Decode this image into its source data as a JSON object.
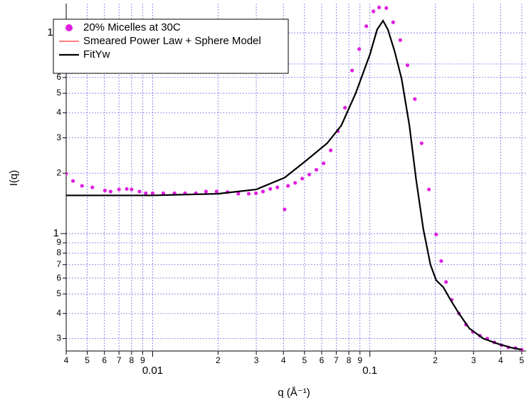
{
  "chart_data": {
    "type": "line",
    "xlabel": "q (Å⁻¹)",
    "ylabel": "I(q)",
    "xscale": "log",
    "yscale": "log",
    "grid": true,
    "legend": "upper left",
    "xlim": [
      0.004,
      0.5
    ],
    "ylim": [
      0.26,
      14
    ],
    "xticks": [
      {
        "value": 0.004,
        "label": "4"
      },
      {
        "value": 0.005,
        "label": "5"
      },
      {
        "value": 0.006,
        "label": "6"
      },
      {
        "value": 0.007,
        "label": "7"
      },
      {
        "value": 0.008,
        "label": "8"
      },
      {
        "value": 0.009,
        "label": "9"
      },
      0.01,
      {
        "value": 0.02,
        "label": "2"
      },
      {
        "value": 0.03,
        "label": "3"
      },
      {
        "value": 0.04,
        "label": "4"
      },
      {
        "value": 0.05,
        "label": "5"
      },
      {
        "value": 0.06,
        "label": "6"
      },
      {
        "value": 0.07,
        "label": "7"
      },
      {
        "value": 0.08,
        "label": "8"
      },
      {
        "value": 0.09,
        "label": "9"
      },
      0.1,
      {
        "value": 0.2,
        "label": "2"
      },
      {
        "value": 0.3,
        "label": "3"
      },
      {
        "value": 0.4,
        "label": "4"
      },
      {
        "value": 0.5,
        "label": "5"
      }
    ],
    "yticks": [
      {
        "value": 0.3,
        "label": "3"
      },
      {
        "value": 0.4,
        "label": "4"
      },
      {
        "value": 0.5,
        "label": "5"
      },
      {
        "value": 0.6,
        "label": "6"
      },
      {
        "value": 0.7,
        "label": "7"
      },
      {
        "value": 0.8,
        "label": "8"
      },
      {
        "value": 0.9,
        "label": "9"
      },
      1,
      {
        "value": 2,
        "label": "2"
      },
      {
        "value": 3,
        "label": "3"
      },
      {
        "value": 4,
        "label": "4"
      },
      {
        "value": 5,
        "label": "5"
      },
      {
        "value": 6,
        "label": "6"
      },
      {
        "value": 7,
        "label": "7"
      },
      10
    ],
    "series": [
      {
        "name": "20% Micelles at 30C",
        "mode": "markers",
        "color": "#e020e0",
        "x": [
          0.004,
          0.0043,
          0.00473,
          0.00528,
          0.00603,
          0.0064,
          0.007,
          0.0076,
          0.008,
          0.0087,
          0.0093,
          0.01,
          0.0112,
          0.0126,
          0.0141,
          0.0158,
          0.0176,
          0.0197,
          0.0221,
          0.0248,
          0.0277,
          0.0299,
          0.0322,
          0.0348,
          0.0375,
          0.0405,
          0.042,
          0.0453,
          0.0488,
          0.0526,
          0.0567,
          0.0612,
          0.066,
          0.0712,
          0.0768,
          0.0828,
          0.0893,
          0.0963,
          0.1038,
          0.1103,
          0.119,
          0.128,
          0.138,
          0.149,
          0.161,
          0.173,
          0.187,
          0.202,
          0.213,
          0.224,
          0.238,
          0.257,
          0.277,
          0.298,
          0.321,
          0.347,
          0.374,
          0.403,
          0.434,
          0.468,
          0.5
        ],
        "values": [
          1.99,
          1.83,
          1.73,
          1.7,
          1.64,
          1.62,
          1.66,
          1.67,
          1.66,
          1.62,
          1.59,
          1.59,
          1.59,
          1.59,
          1.59,
          1.59,
          1.62,
          1.62,
          1.61,
          1.58,
          1.58,
          1.59,
          1.62,
          1.67,
          1.7,
          1.32,
          1.73,
          1.79,
          1.88,
          1.97,
          2.08,
          2.24,
          2.6,
          3.24,
          4.24,
          6.5,
          8.3,
          10.8,
          12.8,
          13.4,
          13.3,
          11.3,
          9.2,
          6.9,
          4.68,
          2.82,
          1.66,
          0.99,
          0.73,
          0.574,
          0.468,
          0.4,
          0.352,
          0.324,
          0.31,
          0.3,
          0.287,
          0.278,
          0.271,
          0.269,
          0.264
        ]
      },
      {
        "name": "Smeared Power Law + Sphere Model",
        "mode": "lines",
        "color": "#ff0000",
        "x": [
          0.004,
          0.01,
          0.02,
          0.03,
          0.0405,
          0.0506,
          0.0636,
          0.0739,
          0.086,
          0.1,
          0.108,
          0.115,
          0.121,
          0.13,
          0.14,
          0.152,
          0.163,
          0.176,
          0.19,
          0.202,
          0.218,
          0.235,
          0.257,
          0.287,
          0.333,
          0.39,
          0.45,
          0.5
        ],
        "values": [
          1.55,
          1.55,
          1.58,
          1.66,
          1.9,
          2.3,
          2.82,
          3.46,
          5.0,
          7.8,
          10.4,
          11.5,
          10.4,
          8.1,
          5.9,
          3.46,
          1.88,
          1.06,
          0.7,
          0.585,
          0.54,
          0.468,
          0.4,
          0.337,
          0.3,
          0.282,
          0.27,
          0.264
        ]
      },
      {
        "name": "FitYw",
        "mode": "lines",
        "color": "#000000",
        "x": [
          0.004,
          0.01,
          0.02,
          0.03,
          0.0405,
          0.0506,
          0.0636,
          0.0739,
          0.086,
          0.1,
          0.108,
          0.115,
          0.121,
          0.13,
          0.14,
          0.152,
          0.163,
          0.176,
          0.19,
          0.202,
          0.218,
          0.235,
          0.257,
          0.287,
          0.333,
          0.39,
          0.45,
          0.5
        ],
        "values": [
          1.55,
          1.55,
          1.58,
          1.66,
          1.9,
          2.3,
          2.82,
          3.46,
          5.0,
          7.8,
          10.4,
          11.5,
          10.4,
          8.1,
          5.9,
          3.46,
          1.88,
          1.06,
          0.7,
          0.585,
          0.54,
          0.468,
          0.4,
          0.337,
          0.3,
          0.282,
          0.27,
          0.264
        ]
      }
    ]
  }
}
